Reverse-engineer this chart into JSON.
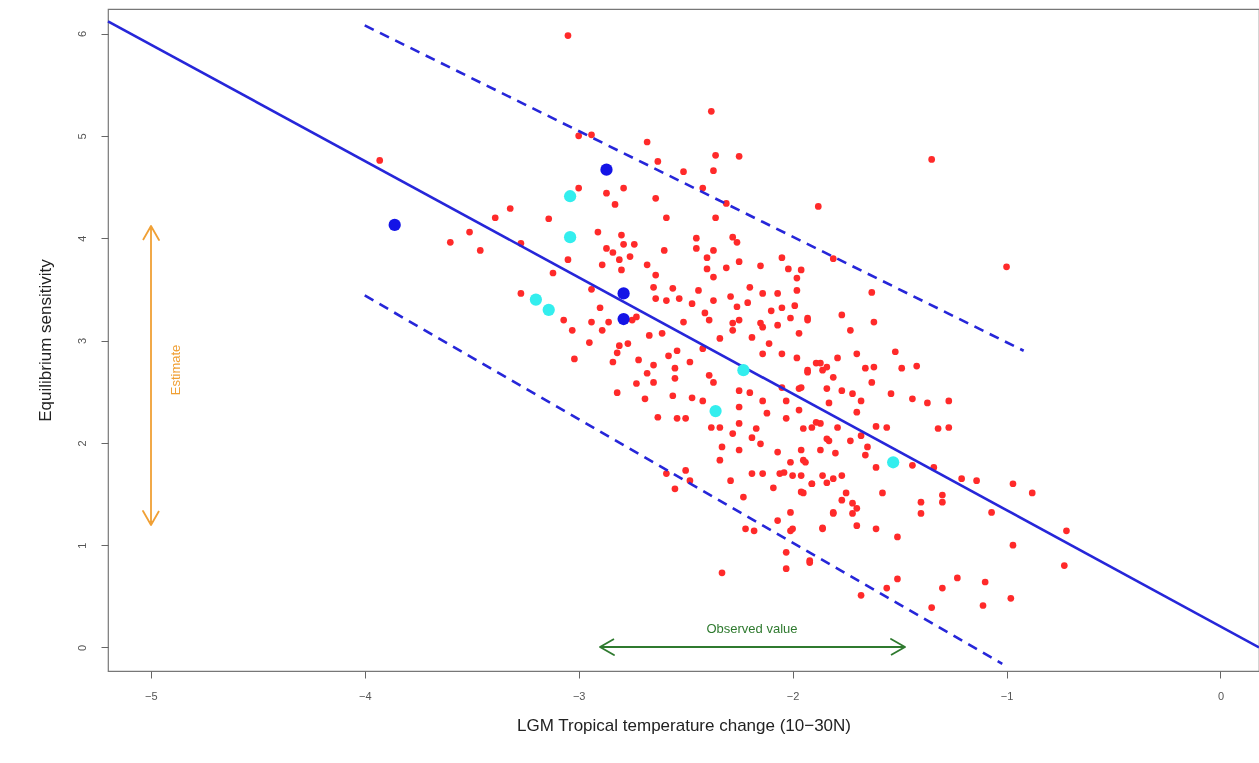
{
  "chart_data": {
    "type": "scatter",
    "xlabel": "LGM Tropical temperature change (10−30N)",
    "ylabel": "Equilibrium sensitivity",
    "xlim": [
      -5.2,
      0.18
    ],
    "ylim": [
      -0.23,
      6.24
    ],
    "xticks": [
      -5,
      -4,
      -3,
      -2,
      -1,
      0
    ],
    "yticks": [
      0,
      1,
      2,
      3,
      4,
      5,
      6
    ],
    "grid": false,
    "series": [
      {
        "marker": "circle",
        "color": "#ff2a2a",
        "x": [
          -3.05,
          -2.38,
          -3.0,
          -2.94,
          -2.68,
          -2.36,
          -2.25,
          -2.63,
          -2.51,
          -2.37,
          -2.42,
          -1.88,
          -2.31,
          -3.0,
          -2.87,
          -2.83,
          -2.79,
          -2.64,
          -2.59,
          -2.36,
          -3.39,
          -3.32,
          -3.14,
          -3.51,
          -3.6,
          -3.46,
          -3.27,
          -3.93,
          -2.91,
          -2.8,
          -2.79,
          -2.74,
          -2.87,
          -2.84,
          -2.76,
          -2.81,
          -2.89,
          -2.68,
          -2.8,
          -3.05,
          -2.6,
          -2.45,
          -2.45,
          -2.37,
          -2.4,
          -2.28,
          -2.26,
          -2.31,
          -2.25,
          -2.15,
          -2.05,
          -2.02,
          -1.96,
          -1.98,
          -2.37,
          -2.4,
          -2.64,
          -3.12,
          -3.27,
          -3.07,
          -3.03,
          -2.94,
          -2.9,
          -2.94,
          -2.86,
          -2.65,
          -2.56,
          -2.64,
          -2.59,
          -2.53,
          -2.47,
          -2.44,
          -2.41,
          -2.37,
          -2.29,
          -2.26,
          -2.2,
          -2.21,
          -2.14,
          -2.07,
          -2.1,
          -2.05,
          -1.99,
          -1.98,
          -1.93,
          -2.15,
          -2.07,
          -2.28,
          -2.51,
          -2.39,
          -2.75,
          -2.89,
          -2.73,
          -2.67,
          -2.61,
          -2.95,
          -2.81,
          -2.77,
          -2.82,
          -3.02,
          -2.84,
          -2.72,
          -2.65,
          -2.58,
          -2.54,
          -2.48,
          -2.55,
          -2.55,
          -2.68,
          -2.65,
          -2.73,
          -2.82,
          -2.69,
          -2.56,
          -2.47,
          -2.42,
          -2.39,
          -2.37,
          -2.42,
          -2.34,
          -2.28,
          -2.25,
          -2.19,
          -2.14,
          -2.11,
          -2.14,
          -2.05,
          -1.98,
          -1.89,
          -1.93,
          -1.86,
          -2.05,
          -1.97,
          -2.03,
          -1.97,
          -1.87,
          -1.83,
          -1.91,
          -2.12,
          -2.03,
          -2.17,
          -2.25,
          -2.2,
          -2.25,
          -2.14,
          -2.25,
          -2.28,
          -2.19,
          -2.15,
          -2.33,
          -2.25,
          -2.07,
          -2.01,
          -1.95,
          -2.14,
          -2.06,
          -2.0,
          -1.91,
          -1.84,
          -1.81,
          -2.19,
          -2.09,
          -1.95,
          -2.23,
          -2.34,
          -2.34,
          -2.38,
          -2.5,
          -2.54,
          -2.63,
          -2.59,
          -2.5,
          -2.48,
          -2.55,
          -2.29,
          -2.22,
          -2.18,
          -2.07,
          -2.01,
          -2.03,
          -2.03,
          -1.92,
          -2.33,
          -1.86,
          -1.81,
          -1.35,
          -1.0,
          -1.81,
          -1.63,
          -1.77,
          -1.62,
          -1.73,
          -1.93,
          -2.01,
          -1.97,
          -1.79,
          -1.7,
          -1.52,
          -1.66,
          -1.62,
          -1.49,
          -1.42,
          -1.63,
          -1.87,
          -1.93,
          -1.84,
          -1.96,
          -1.84,
          -1.77,
          -1.72,
          -1.68,
          -1.54,
          -1.44,
          -1.37,
          -1.27,
          -1.83,
          -1.7,
          -1.89,
          -1.95,
          -1.79,
          -1.61,
          -1.56,
          -1.32,
          -1.27,
          -1.84,
          -1.73,
          -1.68,
          -1.65,
          -1.66,
          -1.87,
          -1.96,
          -1.8,
          -1.61,
          -1.94,
          -1.44,
          -1.34,
          -1.21,
          -1.14,
          -0.97,
          -0.88,
          -2.04,
          -1.96,
          -1.86,
          -1.77,
          -1.91,
          -1.81,
          -1.96,
          -1.75,
          -1.58,
          -1.3,
          -1.3,
          -1.4,
          -1.77,
          -1.72,
          -1.7,
          -1.81,
          -1.72,
          -1.4,
          -1.07,
          -2.01,
          -2.0,
          -1.86,
          -1.7,
          -1.61,
          -0.72,
          -0.97,
          -1.51,
          -1.92,
          -0.73,
          -1.23,
          -1.1,
          -1.3,
          -1.51,
          -1.56,
          -1.68,
          -1.35,
          -1.11,
          -0.98
        ],
        "values": [
          5.98,
          5.24,
          5.0,
          5.01,
          4.94,
          4.81,
          4.8,
          4.75,
          4.65,
          4.66,
          4.49,
          4.31,
          4.34,
          4.49,
          4.44,
          4.33,
          4.49,
          4.39,
          4.2,
          4.2,
          4.2,
          4.29,
          4.19,
          4.06,
          3.96,
          3.88,
          3.95,
          4.76,
          4.06,
          4.03,
          3.94,
          3.94,
          3.9,
          3.86,
          3.82,
          3.79,
          3.74,
          3.74,
          3.69,
          3.79,
          3.88,
          4.0,
          3.9,
          3.88,
          3.81,
          4.01,
          3.96,
          3.71,
          3.77,
          3.73,
          3.81,
          3.7,
          3.69,
          3.61,
          3.62,
          3.7,
          3.64,
          3.66,
          3.46,
          3.2,
          3.1,
          3.5,
          3.32,
          3.18,
          3.18,
          3.52,
          3.51,
          3.41,
          3.39,
          3.41,
          3.36,
          3.49,
          3.27,
          3.39,
          3.43,
          3.33,
          3.52,
          3.37,
          3.46,
          3.46,
          3.29,
          3.32,
          3.34,
          3.49,
          3.22,
          3.17,
          3.15,
          3.17,
          3.18,
          3.2,
          3.2,
          3.1,
          3.23,
          3.05,
          3.07,
          2.98,
          2.95,
          2.97,
          2.88,
          2.82,
          2.79,
          2.81,
          2.76,
          2.85,
          2.9,
          2.79,
          2.73,
          2.63,
          2.68,
          2.59,
          2.58,
          2.49,
          2.43,
          2.46,
          2.44,
          2.41,
          2.66,
          2.59,
          2.92,
          3.02,
          3.1,
          3.2,
          3.03,
          3.13,
          2.97,
          2.87,
          2.87,
          2.83,
          2.78,
          2.71,
          2.71,
          2.54,
          2.53,
          2.41,
          2.32,
          2.19,
          2.02,
          2.15,
          2.29,
          2.24,
          2.14,
          2.51,
          2.49,
          2.35,
          2.41,
          2.19,
          2.09,
          2.05,
          1.99,
          1.96,
          1.93,
          1.91,
          1.81,
          1.83,
          1.7,
          1.7,
          1.68,
          1.6,
          1.61,
          1.31,
          1.7,
          1.56,
          1.51,
          1.47,
          1.83,
          2.15,
          2.15,
          2.24,
          2.24,
          2.25,
          1.7,
          1.73,
          1.63,
          1.55,
          1.63,
          1.16,
          1.14,
          1.24,
          1.14,
          0.93,
          0.77,
          0.85,
          0.73,
          1.16,
          2.64,
          4.77,
          3.72,
          3.8,
          3.47,
          3.25,
          3.18,
          3.1,
          3.2,
          3.22,
          3.07,
          2.83,
          2.87,
          2.89,
          2.73,
          2.74,
          2.73,
          2.75,
          2.59,
          2.78,
          2.69,
          2.74,
          2.54,
          2.53,
          2.51,
          2.48,
          2.41,
          2.48,
          2.43,
          2.39,
          2.41,
          2.39,
          2.3,
          2.2,
          2.14,
          2.15,
          2.16,
          2.15,
          2.14,
          2.15,
          2.04,
          2.02,
          2.07,
          1.96,
          1.88,
          1.93,
          1.93,
          1.9,
          1.76,
          1.81,
          1.78,
          1.76,
          1.65,
          1.63,
          1.6,
          1.51,
          1.71,
          1.68,
          1.68,
          1.68,
          1.6,
          1.65,
          1.52,
          1.51,
          1.51,
          1.49,
          1.42,
          1.42,
          1.44,
          1.41,
          1.36,
          1.32,
          1.31,
          1.31,
          1.32,
          1.32,
          1.16,
          1.17,
          1.19,
          1.16,
          1.14,
          1.0,
          1.08,
          0.83,
          0.8,
          0.68,
          0.64,
          0.58,
          0.67,
          0.58,
          0.51,
          0.39,
          0.41,
          0.48
        ]
      },
      {
        "type": "line",
        "marker": "none",
        "color": "#2626d9",
        "x": [
          -5.2,
          0.18
        ],
        "values": [
          6.12,
          0.0
        ]
      },
      {
        "type": "line",
        "marker": "none",
        "color": "#2626d9",
        "line_style": "dashed",
        "x": [
          -4.0,
          -0.92
        ],
        "values": [
          6.08,
          2.9
        ]
      },
      {
        "type": "line",
        "marker": "none",
        "color": "#2626d9",
        "line_style": "dashed",
        "x": [
          -4.0,
          -1.02
        ],
        "values": [
          3.44,
          -0.16
        ]
      },
      {
        "marker": "circle",
        "color": "#1414e6",
        "x": [
          -3.86,
          -2.87,
          -2.79,
          -2.79
        ],
        "values": [
          4.13,
          4.67,
          3.46,
          3.21
        ]
      },
      {
        "marker": "circle",
        "color": "#33eeee",
        "x": [
          -3.04,
          -3.04,
          -3.2,
          -3.14,
          -2.23,
          -2.36,
          -1.53
        ],
        "values": [
          4.41,
          4.01,
          3.4,
          3.3,
          2.71,
          2.31,
          1.81
        ]
      }
    ],
    "annotations": [
      "Estimate",
      "Observed value"
    ]
  }
}
